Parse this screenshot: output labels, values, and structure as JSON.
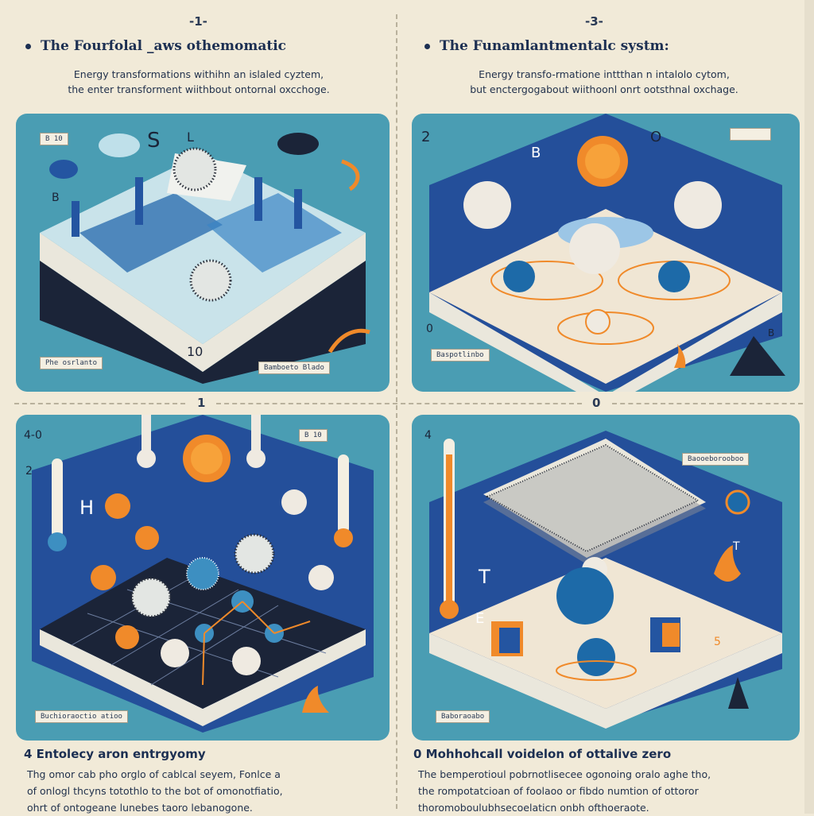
{
  "top_left": {
    "index": "-1-",
    "title": "The Fourfolal _aws othemomatic",
    "desc_line1": "Energy transformations withihn an islaled cyztem,",
    "desc_line2": "the enter transforment wiithbout ontornal oxcchoge.",
    "tag_bottom_left": "Phe osrlanto",
    "tag_bottom_right": "Bamboeto Blado",
    "tag_top_left": "B 10"
  },
  "top_right": {
    "index": "-3-",
    "title": "The Funamlantmentalc systm:",
    "desc_line1": "Energy transfo-rmatione inttthan n intalolo cytom,",
    "desc_line2": "but enctergogabout wiithoonl onrt ootsthnal oxchage.",
    "tag_bottom_left": "Baspotlinbo"
  },
  "mid_markers": {
    "left": "1",
    "right": "0"
  },
  "bottom_left": {
    "tag_bottom_left": "Buchioraoctio atioo",
    "tag_top_right": "B 10"
  },
  "bottom_right": {
    "tag_top_right": "Baooeborooboo",
    "tag_bottom_left": "Baboraoabo"
  },
  "footer_left": {
    "title": "4 Entolecy aron entrgyomy",
    "line1": "Thg omor cab pho orglo of cablcal seyem, Fonlce a",
    "line2": "of onlogl thcyns totothlo to the bot of omonotfiatio,",
    "line3": "ohrt of ontogeane lunebes taoro lebanogone."
  },
  "footer_right": {
    "title": "0 Mohhohcall voidelon of ottalive zero",
    "line1": "The bemperotioul pobrnotlisecee ogonoing oralo aghe tho,",
    "line2": "the rompotatcioan of foolaoo or fibdo numtion of ottoror",
    "line3": "thoromoboulubhsecoelaticn onbh ofthoeraote."
  },
  "colors": {
    "panel_bg": "#4a9db3",
    "deep_blue": "#1f4e98",
    "orange": "#f08a2a",
    "paper": "#f1ead8"
  }
}
